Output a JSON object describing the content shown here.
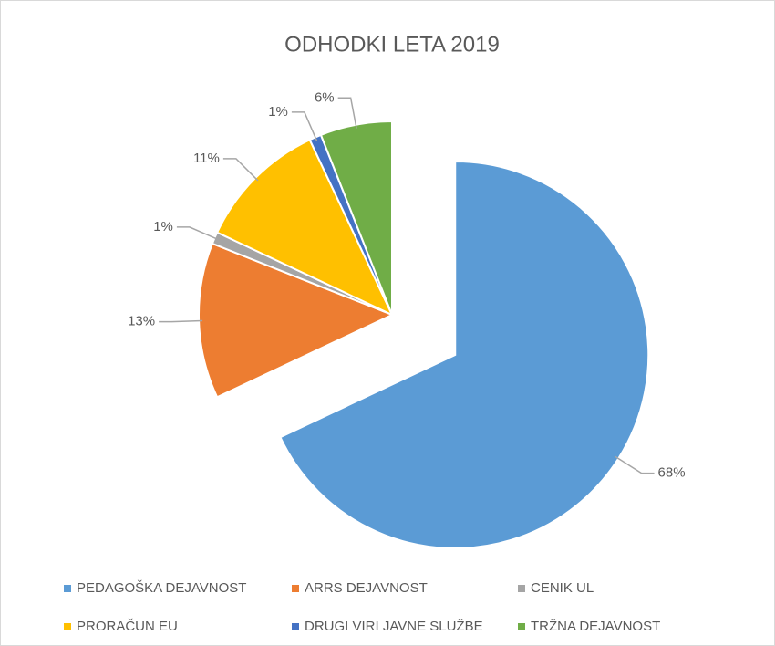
{
  "chart_data": {
    "type": "pie",
    "title": "ODHODKI LETA 2019",
    "categories": [
      "PEDAGOŠKA DEJAVNOST",
      "ARRS DEJAVNOST",
      "CENIK UL",
      "PRORAČUN EU",
      "DRUGI VIRI JAVNE SLUŽBE",
      "TRŽNA DEJAVNOST"
    ],
    "values": [
      68,
      13,
      1,
      11,
      1,
      6
    ],
    "value_labels": [
      "68%",
      "13%",
      "1%",
      "11%",
      "1%",
      "6%"
    ],
    "colors": [
      "#5b9bd5",
      "#ed7d31",
      "#a5a5a5",
      "#ffc000",
      "#4472c4",
      "#70ad47"
    ],
    "legend": "bottom"
  }
}
